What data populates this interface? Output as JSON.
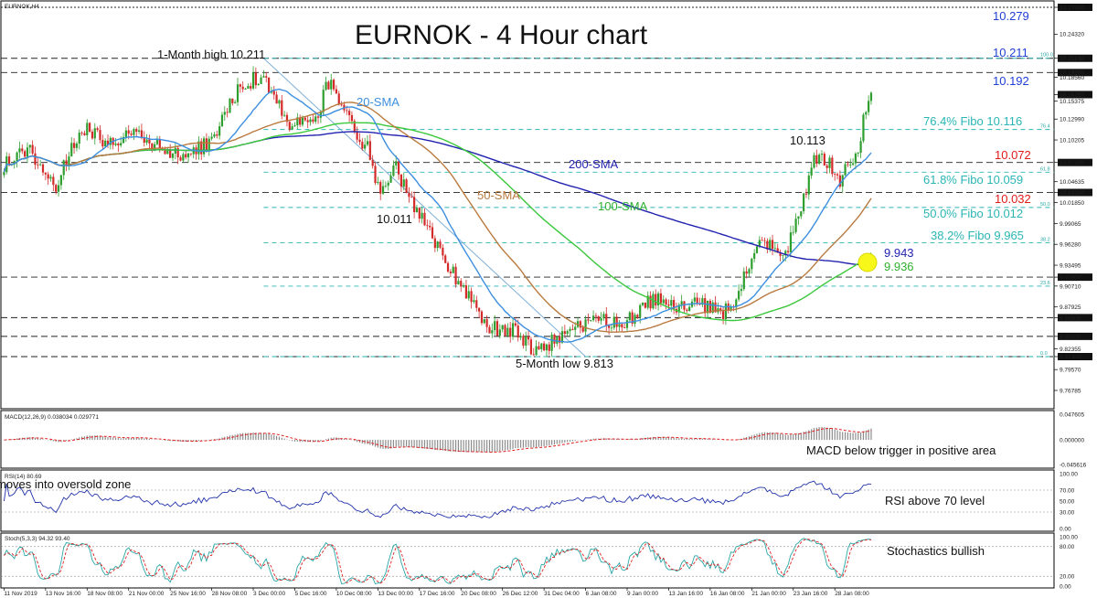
{
  "chart_data": {
    "type": "candlestick",
    "title": "EURNOK - 4 Hour chart",
    "symbol_label": "EURNOK,H4",
    "colors": {
      "bull": "#2e9e2e",
      "bear": "#d42a2a",
      "sma20": "#3d8fe0",
      "sma50": "#b97a3f",
      "sma100": "#3cc83c",
      "sma200": "#2222b0",
      "fib": "#2bb5b5",
      "level": "#222222",
      "trend": "#7fb0d8",
      "red_label": "#e01b1b",
      "blue_label": "#1f3fd6",
      "marker": "#f7f71a",
      "macd_hist": "#8c8c8c",
      "macd_signal": "#e02020",
      "rsi": "#2233aa",
      "stoch_main": "#2aa6a6",
      "stoch_signal": "#e02020"
    },
    "price_axis": {
      "ylim": [
        9.755,
        10.285
      ],
      "tick_labels": [
        "10.27900",
        "10.24320",
        "10.21100",
        "10.19200",
        "10.18560",
        "10.16257",
        "10.15375",
        "10.12990",
        "10.10205",
        "10.07200",
        "10.04635",
        "10.03200",
        "10.01850",
        "9.99065",
        "9.96280",
        "9.93495",
        "9.91900",
        "9.90710",
        "9.87925",
        "9.86500",
        "9.84000",
        "9.82355",
        "9.81300",
        "9.79570",
        "9.76785"
      ],
      "tick_values": [
        10.279,
        10.2432,
        10.211,
        10.192,
        10.1856,
        10.16257,
        10.15375,
        10.1299,
        10.10205,
        10.072,
        10.04635,
        10.032,
        10.0185,
        9.99065,
        9.9628,
        9.93495,
        9.919,
        9.9071,
        9.87925,
        9.865,
        9.84,
        9.82355,
        9.813,
        9.7957,
        9.76785
      ],
      "highlighted_ticks": [
        10.279,
        10.211,
        10.192,
        10.16257,
        10.072,
        10.032,
        9.919,
        9.865,
        9.84,
        9.813
      ]
    },
    "x_axis": {
      "tick_labels": [
        "11 Nov 2019",
        "13 Nov 16:00",
        "18 Nov 08:00",
        "21 Nov 00:00",
        "25 Nov 16:00",
        "28 Nov 08:00",
        "3 Dec 00:00",
        "5 Dec 16:00",
        "10 Dec 08:00",
        "13 Dec 00:00",
        "17 Dec 16:00",
        "20 Dec 08:00",
        "26 Dec 12:00",
        "31 Dec 04:00",
        "6 Jan 08:00",
        "9 Jan 00:00",
        "13 Jan 16:00",
        "16 Jan 08:00",
        "21 Jan 00:00",
        "23 Jan 16:00",
        "28 Jan 08:00"
      ],
      "bar_index": [
        0,
        16,
        32,
        48,
        64,
        80,
        96,
        112,
        128,
        144,
        160,
        176,
        192,
        208,
        224,
        240,
        256,
        272,
        288,
        304,
        320
      ]
    },
    "horizontal_levels": [
      {
        "value": 10.279,
        "style": "dotted"
      },
      {
        "value": 10.211,
        "style": "dashed"
      },
      {
        "value": 10.192,
        "style": "dashed"
      },
      {
        "value": 10.072,
        "style": "dashed"
      },
      {
        "value": 10.032,
        "style": "dashed"
      },
      {
        "value": 9.919,
        "style": "dashed"
      },
      {
        "value": 9.865,
        "style": "dashed"
      },
      {
        "value": 9.84,
        "style": "dashed"
      },
      {
        "value": 9.813,
        "style": "dashed"
      }
    ],
    "fibonacci": {
      "start_bar": 100,
      "levels": [
        {
          "value": 10.211,
          "small_label": "100.0"
        },
        {
          "value": 10.116,
          "small_label": "76.4"
        },
        {
          "value": 10.059,
          "small_label": "61.8"
        },
        {
          "value": 10.012,
          "small_label": "50.0"
        },
        {
          "value": 9.965,
          "small_label": "38.2"
        },
        {
          "value": 9.907,
          "small_label": "23.6"
        },
        {
          "value": 9.813,
          "small_label": "0.0"
        }
      ]
    },
    "trendline": {
      "from": [
        100,
        10.211
      ],
      "to": [
        224,
        9.813
      ]
    },
    "annotations": {
      "monthly_high": "1-Month high 10.211",
      "low_point": "5-Month low 9.813",
      "swing_low": "10.011",
      "swing_high": "10.113",
      "sma20_label": "20-SMA",
      "sma50_label": "50-SMA",
      "sma100_label": "100-SMA",
      "sma200_label": "200-SMA",
      "price_labels": {
        "l10279": "10.279",
        "l10211": "10.211",
        "l10192": "10.192",
        "l10072": "10.072",
        "l10032": "10.032",
        "sma200_val": "9.943",
        "sma100_val": "9.936"
      },
      "fib_labels": {
        "f764": "76.4% Fibo 10.116",
        "f618": "61.8% Fibo 10.059",
        "f500": "50.0% Fibo 10.012",
        "f382": "38.2% Fibo 9.965"
      }
    },
    "key_points": [
      [
        0,
        10.07
      ],
      [
        10,
        10.09
      ],
      [
        20,
        10.04
      ],
      [
        30,
        10.12
      ],
      [
        40,
        10.1
      ],
      [
        50,
        10.11
      ],
      [
        60,
        10.09
      ],
      [
        70,
        10.08
      ],
      [
        80,
        10.1
      ],
      [
        90,
        10.17
      ],
      [
        100,
        10.19
      ],
      [
        110,
        10.12
      ],
      [
        120,
        10.13
      ],
      [
        125,
        10.18
      ],
      [
        130,
        10.14
      ],
      [
        140,
        10.09
      ],
      [
        145,
        10.03
      ],
      [
        150,
        10.07
      ],
      [
        160,
        10.0
      ],
      [
        170,
        9.94
      ],
      [
        180,
        9.89
      ],
      [
        186,
        9.85
      ],
      [
        195,
        9.85
      ],
      [
        205,
        9.82
      ],
      [
        210,
        9.83
      ],
      [
        220,
        9.85
      ],
      [
        228,
        9.86
      ],
      [
        240,
        9.86
      ],
      [
        250,
        9.89
      ],
      [
        260,
        9.875
      ],
      [
        268,
        9.885
      ],
      [
        276,
        9.87
      ],
      [
        282,
        9.89
      ],
      [
        290,
        9.96
      ],
      [
        296,
        9.96
      ],
      [
        300,
        9.94
      ],
      [
        306,
        10.0
      ],
      [
        312,
        10.08
      ],
      [
        318,
        10.07
      ],
      [
        322,
        10.05
      ],
      [
        328,
        10.08
      ],
      [
        334,
        10.17
      ]
    ],
    "macd": {
      "label": "MACD(12,26,9) 0.038034 0.029771",
      "tick_labels": [
        "0.047605",
        "0.000000",
        "-0.045616"
      ],
      "ylim": [
        -0.0475,
        0.0495
      ],
      "annotation": "MACD below trigger in positive area"
    },
    "rsi": {
      "label": "RSI(14) 80.69",
      "tick_labels": [
        "100.00",
        "70.00",
        "50.00",
        "30.00",
        "0.00"
      ],
      "ylim": [
        0,
        100
      ],
      "levels": [
        70,
        30
      ],
      "annotation_left": "moves into oversold zone",
      "annotation_right": "RSI above 70 level",
      "last": 80.69
    },
    "stoch": {
      "label": "Stoch(5,3,3) 94.32 93.40",
      "tick_labels": [
        "100.00",
        "80.00",
        "20.00",
        "0.00"
      ],
      "ylim": [
        0,
        100
      ],
      "levels": [
        80,
        20
      ],
      "annotation": "Stochastics bullish",
      "last_main": 94.32,
      "last_signal": 93.4
    }
  }
}
